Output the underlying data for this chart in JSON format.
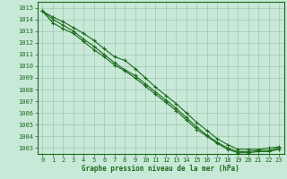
{
  "x": [
    0,
    1,
    2,
    3,
    4,
    5,
    6,
    7,
    8,
    9,
    10,
    11,
    12,
    13,
    14,
    15,
    16,
    17,
    18,
    19,
    20,
    21,
    22,
    23
  ],
  "line1": [
    1014.7,
    1014.2,
    1013.8,
    1013.3,
    1012.8,
    1012.2,
    1011.5,
    1010.8,
    1010.5,
    1009.8,
    1009.0,
    1008.2,
    1007.5,
    1006.8,
    1006.0,
    1005.2,
    1004.5,
    1003.8,
    1003.3,
    1002.9,
    1002.9,
    1002.9,
    1003.0,
    1003.1
  ],
  "line2": [
    1014.7,
    1014.0,
    1013.5,
    1013.0,
    1012.3,
    1011.7,
    1011.0,
    1010.3,
    1009.7,
    1009.2,
    1008.5,
    1007.8,
    1007.1,
    1006.4,
    1005.6,
    1004.8,
    1004.1,
    1003.5,
    1003.0,
    1002.7,
    1002.7,
    1002.8,
    1002.8,
    1003.0
  ],
  "line3": [
    1014.7,
    1013.7,
    1013.2,
    1012.8,
    1012.1,
    1011.4,
    1010.8,
    1010.1,
    1009.6,
    1009.0,
    1008.3,
    1007.6,
    1006.9,
    1006.2,
    1005.4,
    1004.6,
    1004.0,
    1003.4,
    1002.9,
    1002.6,
    1002.6,
    1002.7,
    1002.7,
    1002.9
  ],
  "line_color": "#1a6b1a",
  "bg_color": "#c8e8d8",
  "grid_color": "#a0c8b0",
  "text_color": "#1a6b1a",
  "xlabel": "Graphe pression niveau de la mer (hPa)",
  "ylim_min": 1002.5,
  "ylim_max": 1015.5,
  "xlim_min": -0.5,
  "xlim_max": 23.5,
  "yticks": [
    1003,
    1004,
    1005,
    1006,
    1007,
    1008,
    1009,
    1010,
    1011,
    1012,
    1013,
    1014,
    1015
  ],
  "xticks": [
    0,
    1,
    2,
    3,
    4,
    5,
    6,
    7,
    8,
    9,
    10,
    11,
    12,
    13,
    14,
    15,
    16,
    17,
    18,
    19,
    20,
    21,
    22,
    23
  ]
}
